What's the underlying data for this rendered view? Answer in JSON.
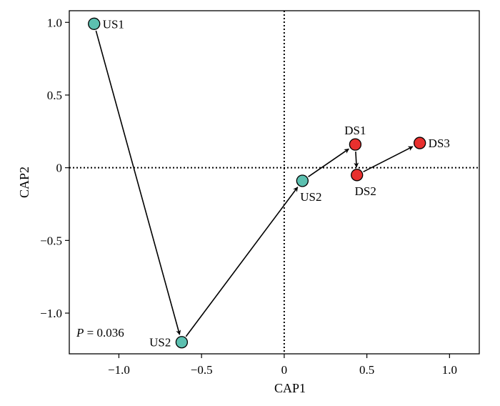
{
  "chart_data": {
    "type": "scatter",
    "xlabel": "CAP1",
    "ylabel": "CAP2",
    "xlim": [
      -1.3,
      1.18
    ],
    "ylim": [
      -1.28,
      1.08
    ],
    "xticks": [
      -1.0,
      -0.5,
      0,
      0.5,
      1.0
    ],
    "xtick_labels": [
      "−1.0",
      "−0.5",
      "0",
      "0.5",
      "1.0"
    ],
    "yticks": [
      1.0,
      0.5,
      0,
      -0.5,
      -1.0
    ],
    "ytick_labels": [
      "1.0",
      "0.5",
      "0",
      "−0.5",
      "−1.0"
    ],
    "reference_lines": {
      "x": 0,
      "y": 0,
      "style": "dotted"
    },
    "grid": false,
    "points": [
      {
        "label": "US1",
        "x": -1.15,
        "y": 0.99,
        "color": "#5cc0b0",
        "label_pos": "right"
      },
      {
        "label": "US2",
        "x": -0.62,
        "y": -1.2,
        "color": "#5cc0b0",
        "label_pos": "left"
      },
      {
        "label": "US2",
        "x": 0.11,
        "y": -0.09,
        "color": "#5cc0b0",
        "label_pos": "below"
      },
      {
        "label": "DS1",
        "x": 0.43,
        "y": 0.16,
        "color": "#e8302e",
        "label_pos": "above"
      },
      {
        "label": "DS2",
        "x": 0.44,
        "y": -0.05,
        "color": "#e8302e",
        "label_pos": "below"
      },
      {
        "label": "DS3",
        "x": 0.82,
        "y": 0.17,
        "color": "#e8302e",
        "label_pos": "right"
      }
    ],
    "arrows": [
      {
        "from": 0,
        "to": 1
      },
      {
        "from": 1,
        "to": 2
      },
      {
        "from": 2,
        "to": 3
      },
      {
        "from": 3,
        "to": 4
      },
      {
        "from": 4,
        "to": 5
      }
    ],
    "annotation": {
      "var": "P",
      "text": " = 0.036"
    }
  }
}
